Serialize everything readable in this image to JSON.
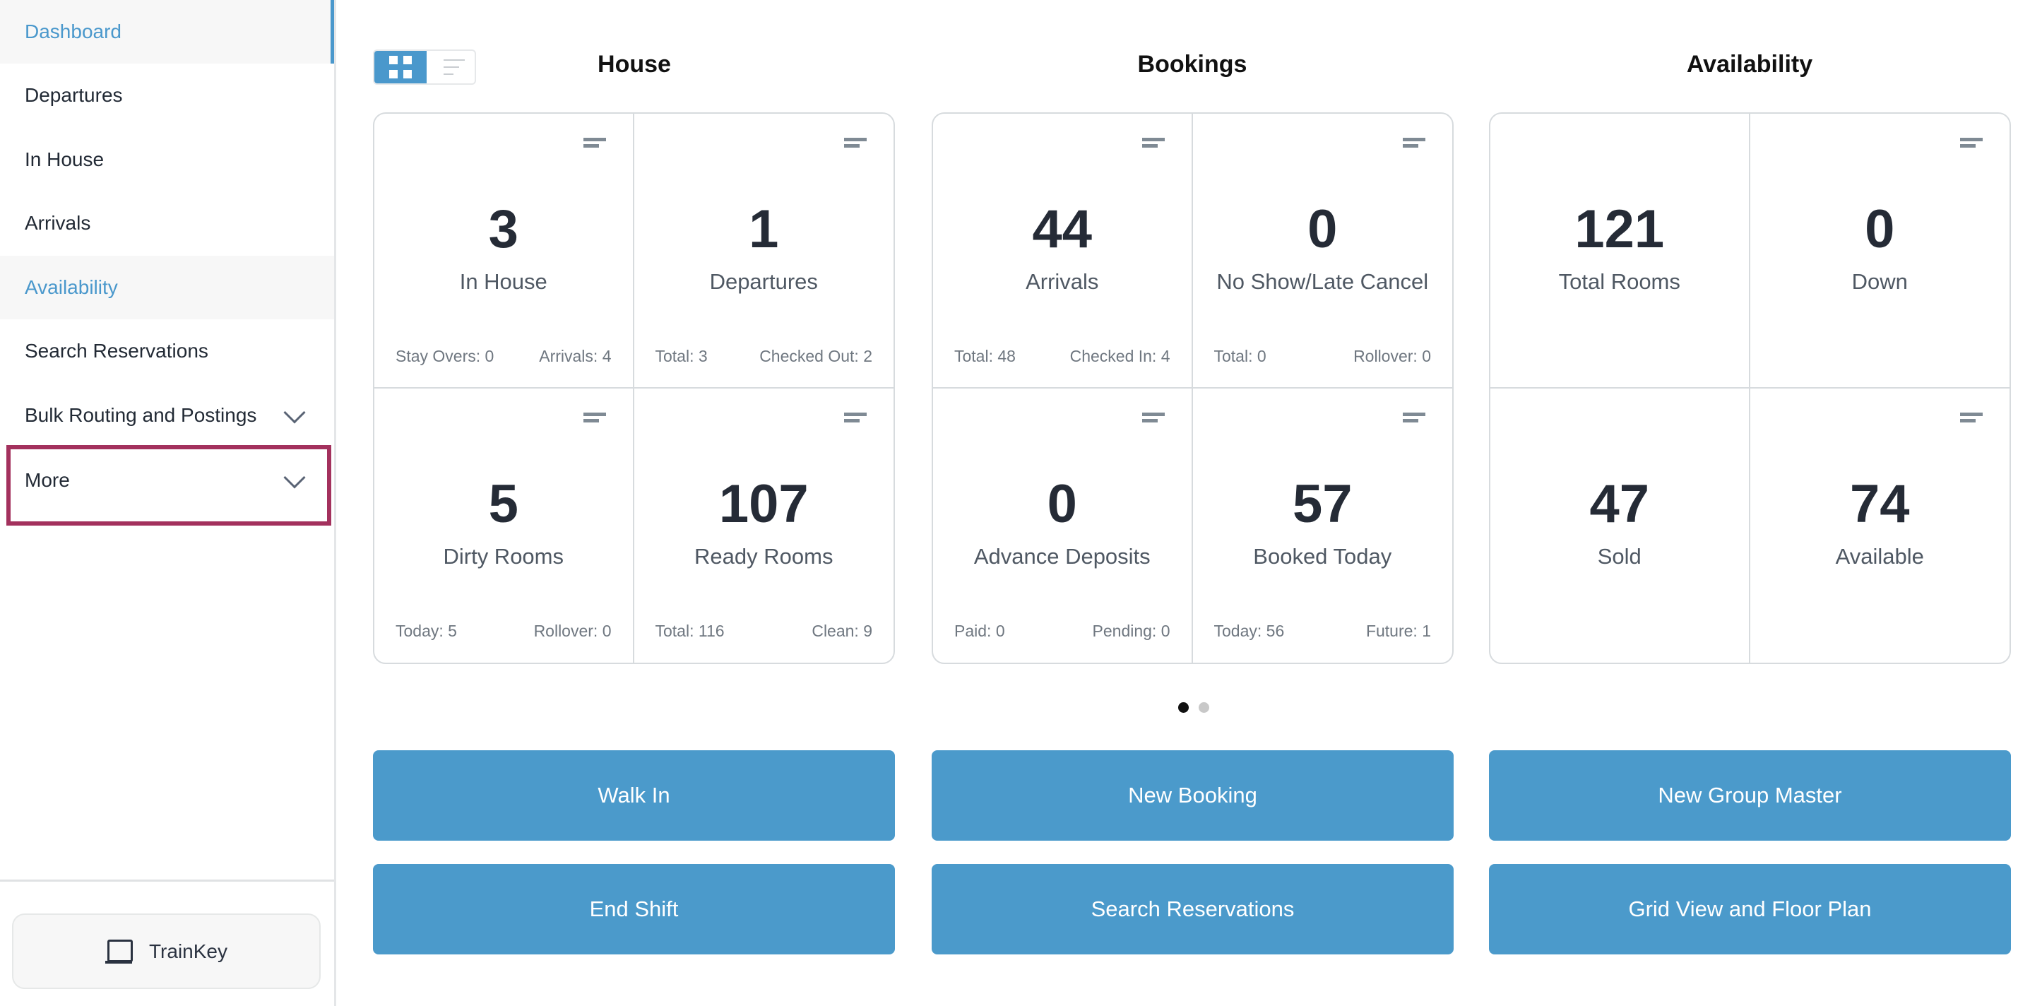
{
  "sidebar": {
    "items": [
      {
        "label": "Dashboard"
      },
      {
        "label": "Departures"
      },
      {
        "label": "In House"
      },
      {
        "label": "Arrivals"
      },
      {
        "label": "Availability"
      },
      {
        "label": "Search Reservations"
      },
      {
        "label": "Bulk Routing and Postings"
      },
      {
        "label": "More"
      }
    ],
    "trainkey_label": "TrainKey"
  },
  "sections": [
    {
      "title": "House",
      "tiles": [
        {
          "value": "3",
          "label": "In House",
          "left": "Stay Overs: 0",
          "right": "Arrivals: 4"
        },
        {
          "value": "1",
          "label": "Departures",
          "left": "Total: 3",
          "right": "Checked Out: 2"
        },
        {
          "value": "5",
          "label": "Dirty Rooms",
          "left": "Today: 5",
          "right": "Rollover: 0"
        },
        {
          "value": "107",
          "label": "Ready Rooms",
          "left": "Total: 116",
          "right": "Clean: 9"
        }
      ]
    },
    {
      "title": "Bookings",
      "tiles": [
        {
          "value": "44",
          "label": "Arrivals",
          "left": "Total: 48",
          "right": "Checked In: 4"
        },
        {
          "value": "0",
          "label": "No Show/Late Cancel",
          "left": "Total: 0",
          "right": "Rollover: 0"
        },
        {
          "value": "0",
          "label": "Advance Deposits",
          "left": "Paid: 0",
          "right": "Pending: 0"
        },
        {
          "value": "57",
          "label": "Booked Today",
          "left": "Today: 56",
          "right": "Future: 1"
        }
      ]
    },
    {
      "title": "Availability",
      "tiles": [
        {
          "value": "121",
          "label": "Total Rooms"
        },
        {
          "value": "0",
          "label": "Down"
        },
        {
          "value": "47",
          "label": "Sold"
        },
        {
          "value": "74",
          "label": "Available"
        }
      ]
    }
  ],
  "pager": {
    "pages": 2,
    "current": 1
  },
  "actions": [
    {
      "label": "Walk In"
    },
    {
      "label": "New Booking"
    },
    {
      "label": "New Group Master"
    },
    {
      "label": "End Shift"
    },
    {
      "label": "Search Reservations"
    },
    {
      "label": "Grid View and Floor Plan"
    }
  ],
  "colors": {
    "accent": "#4b9acb",
    "highlight_border": "#a3315d"
  }
}
